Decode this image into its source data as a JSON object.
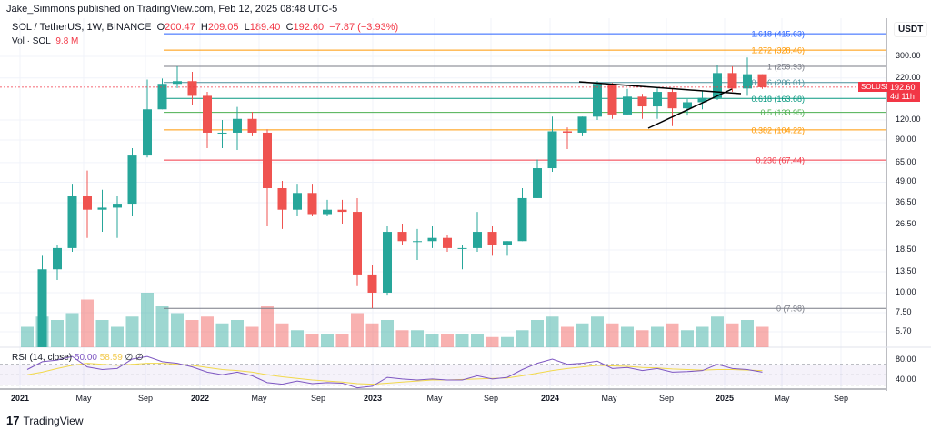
{
  "header": {
    "published": "Jake_Simmons published on TradingView.com, Feb 12, 2025 08:48 UTC-5"
  },
  "symbol": {
    "name": "SOL / TetherUS, 1W, BINANCE",
    "o_label": "O",
    "o": "200.47",
    "h_label": "H",
    "h": "209.05",
    "l_label": "L",
    "l": "189.40",
    "c_label": "C",
    "c": "192.60",
    "change": "−7.87 (−3.93%)"
  },
  "volume": {
    "label": "Vol · SOL",
    "value": "9.8 M"
  },
  "rsi": {
    "label": "RSI (14, close)",
    "v1": "50.00",
    "v2": "58.59",
    "icons": "∅ ∅"
  },
  "price_axis": {
    "currency": "USDT",
    "ticks": [
      "300.00",
      "220.00",
      "120.00",
      "90.00",
      "65.00",
      "49.00",
      "36.50",
      "26.50",
      "18.50",
      "13.50",
      "10.00",
      "7.50",
      "5.70"
    ],
    "rsi_ticks": [
      "80.00",
      "40.00"
    ],
    "symbol_tag": "SOLUSDT",
    "last_price": "192.60",
    "countdown": "4d 11h"
  },
  "time_axis": [
    "2021",
    "May",
    "Sep",
    "2022",
    "May",
    "Sep",
    "2023",
    "May",
    "Sep",
    "2024",
    "May",
    "Sep",
    "2025",
    "May",
    "Sep"
  ],
  "footer": {
    "brand": "TradingView"
  },
  "colors": {
    "up": "#26a69a",
    "down": "#ef5350",
    "rsi": "#7e57c2",
    "rsi_ma": "#f2d94c"
  },
  "fib_levels": [
    {
      "ratio": "1.618",
      "price": 415.63,
      "label": "1.618 (415.63)",
      "color": "#2962ff"
    },
    {
      "ratio": "1.272",
      "price": 328.46,
      "label": "1.272 (328.46)",
      "color": "#ff9800"
    },
    {
      "ratio": "1",
      "price": 259.93,
      "label": "1 (259.93)",
      "color": "#787b86"
    },
    {
      "ratio": "0.786",
      "price": 206.01,
      "label": "0.786 (206.01)",
      "color": "#4a8f9a"
    },
    {
      "ratio": "0.618",
      "price": 163.68,
      "label": "0.618 (163.68)",
      "color": "#089981"
    },
    {
      "ratio": "0.5",
      "price": 133.95,
      "label": "0.5 (133.95)",
      "color": "#4caf50"
    },
    {
      "ratio": "0.382",
      "price": 104.22,
      "label": "0.382 (104.22)",
      "color": "#ff9800"
    },
    {
      "ratio": "0.236",
      "price": 67.44,
      "label": "0.236 (67.44)",
      "color": "#f23645"
    },
    {
      "ratio": "0",
      "price": 7.98,
      "label": "0 (7.98)",
      "color": "#787b86"
    }
  ],
  "chart_data": {
    "type": "candlestick",
    "scale": "log",
    "period": "monthly approximation of weekly chart",
    "start": "2021-01",
    "ohlc": [
      [
        2,
        4,
        1.8,
        4
      ],
      [
        4,
        17,
        3.8,
        14
      ],
      [
        14,
        20,
        12,
        19
      ],
      [
        19,
        48,
        18,
        40
      ],
      [
        40,
        58,
        22,
        33
      ],
      [
        33,
        44,
        24,
        34
      ],
      [
        34,
        40,
        22,
        36
      ],
      [
        36,
        80,
        30,
        72
      ],
      [
        72,
        215,
        70,
        140
      ],
      [
        140,
        218,
        140,
        202
      ],
      [
        202,
        260,
        190,
        210
      ],
      [
        210,
        240,
        150,
        170
      ],
      [
        170,
        180,
        80,
        100
      ],
      [
        100,
        120,
        80,
        100
      ],
      [
        100,
        145,
        78,
        122
      ],
      [
        122,
        135,
        95,
        100
      ],
      [
        100,
        105,
        26,
        45
      ],
      [
        45,
        50,
        25,
        33
      ],
      [
        33,
        48,
        30,
        42
      ],
      [
        42,
        48,
        30,
        31
      ],
      [
        31,
        38,
        30,
        33
      ],
      [
        33,
        38,
        27,
        32
      ],
      [
        32,
        39,
        11,
        13
      ],
      [
        13,
        15,
        8,
        10
      ],
      [
        10,
        26,
        9.6,
        24
      ],
      [
        24,
        27,
        20,
        21
      ],
      [
        21,
        25,
        16,
        21
      ],
      [
        21,
        26,
        19,
        22
      ],
      [
        22,
        23,
        18,
        19
      ],
      [
        19,
        20,
        14,
        19
      ],
      [
        19,
        32,
        18,
        24
      ],
      [
        24,
        26,
        17,
        20
      ],
      [
        20,
        21,
        17,
        21
      ],
      [
        21,
        45,
        21,
        39
      ],
      [
        39,
        68,
        39,
        60
      ],
      [
        60,
        126,
        57,
        102
      ],
      [
        102,
        108,
        79,
        100
      ],
      [
        100,
        126,
        95,
        126
      ],
      [
        126,
        210,
        120,
        202
      ],
      [
        202,
        205,
        122,
        130
      ],
      [
        130,
        188,
        130,
        168
      ],
      [
        168,
        175,
        122,
        146
      ],
      [
        146,
        193,
        122,
        180
      ],
      [
        180,
        190,
        110,
        142
      ],
      [
        142,
        162,
        128,
        155
      ],
      [
        155,
        182,
        140,
        165
      ],
      [
        165,
        264,
        160,
        236
      ],
      [
        236,
        260,
        180,
        189
      ],
      [
        189,
        295,
        170,
        232
      ],
      [
        232,
        232,
        188,
        192.6
      ]
    ],
    "volume": [
      30,
      45,
      40,
      50,
      70,
      40,
      30,
      45,
      80,
      60,
      50,
      40,
      45,
      35,
      40,
      30,
      60,
      35,
      25,
      20,
      20,
      20,
      50,
      35,
      40,
      25,
      25,
      20,
      20,
      20,
      20,
      15,
      15,
      25,
      40,
      45,
      30,
      35,
      45,
      35,
      30,
      25,
      30,
      35,
      25,
      30,
      45,
      35,
      40,
      30
    ],
    "rsi": [
      60,
      75,
      78,
      85,
      65,
      60,
      62,
      80,
      85,
      75,
      72,
      65,
      55,
      50,
      55,
      48,
      35,
      32,
      38,
      33,
      35,
      34,
      25,
      28,
      45,
      42,
      40,
      42,
      40,
      40,
      48,
      42,
      45,
      60,
      72,
      80,
      70,
      72,
      76,
      62,
      64,
      58,
      62,
      55,
      56,
      58,
      70,
      62,
      60,
      55
    ],
    "rsi_ma": [
      50,
      55,
      62,
      68,
      72,
      70,
      68,
      70,
      72,
      72,
      70,
      68,
      64,
      60,
      58,
      55,
      50,
      46,
      43,
      40,
      38,
      36,
      33,
      32,
      34,
      36,
      38,
      40,
      40,
      41,
      42,
      43,
      44,
      48,
      53,
      58,
      62,
      65,
      68,
      67,
      66,
      64,
      63,
      61,
      60,
      59,
      60,
      60,
      59,
      58
    ],
    "rsi_ylim": [
      20,
      100
    ],
    "grid": true,
    "legend": "top-left"
  }
}
